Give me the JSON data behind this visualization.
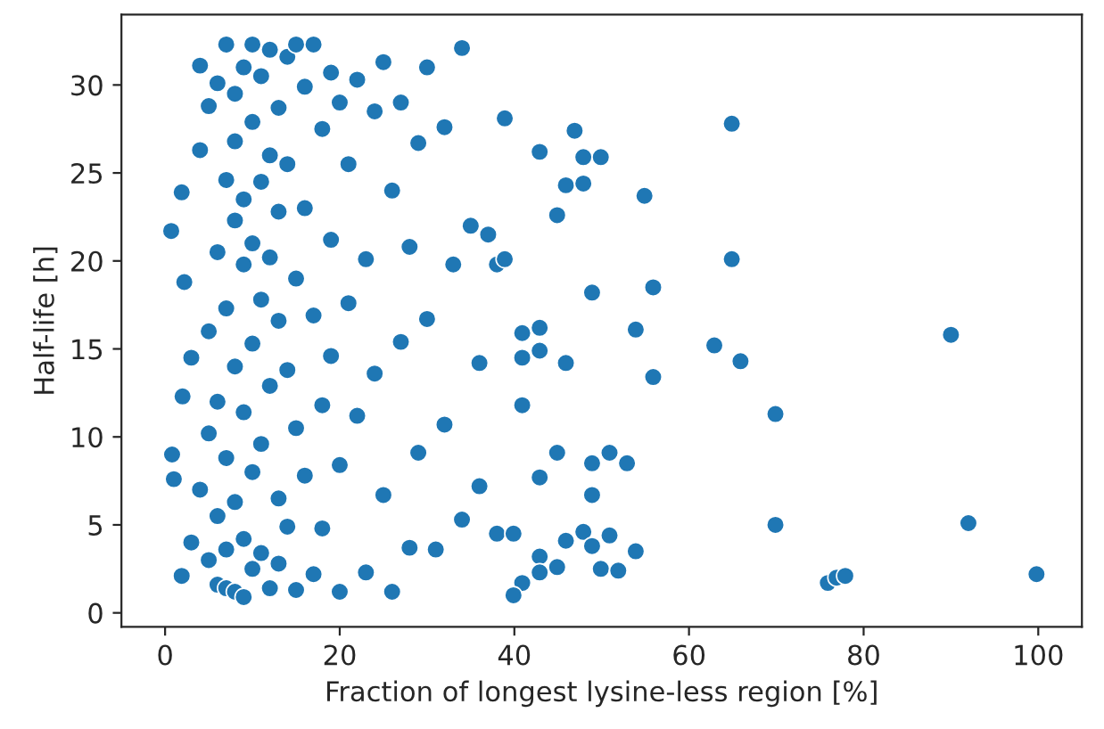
{
  "chart_data": {
    "type": "scatter",
    "xlabel": "Fraction of longest lysine-less region [%]",
    "ylabel": "Half-life [h]",
    "xlim": [
      -5,
      105
    ],
    "ylim": [
      -0.8,
      34
    ],
    "xticks": [
      0,
      20,
      40,
      60,
      80,
      100
    ],
    "yticks": [
      0,
      5,
      10,
      15,
      20,
      25,
      30
    ],
    "grid": false,
    "marker": "circle",
    "series": [
      {
        "color": "#1f77b4",
        "x": [
          0.7,
          0.8,
          1.0,
          1.9,
          1.9,
          2.0,
          2.2,
          3,
          3,
          4,
          4,
          4,
          5,
          5,
          5,
          5,
          6,
          6,
          6,
          6,
          6,
          7,
          7,
          7,
          7,
          7,
          7,
          8,
          8,
          8,
          8,
          8,
          8,
          9,
          9,
          9,
          9,
          9,
          9,
          10,
          10,
          10,
          10,
          10,
          10,
          11,
          11,
          11,
          11,
          11,
          12,
          12,
          12,
          12,
          12,
          13,
          13,
          13,
          13,
          13,
          14,
          14,
          14,
          14,
          15,
          15,
          15,
          15,
          16,
          16,
          16,
          17,
          17,
          17,
          18,
          18,
          18,
          19,
          19,
          19,
          20,
          20,
          20,
          21,
          21,
          22,
          22,
          23,
          23,
          24,
          24,
          25,
          25,
          26,
          26,
          27,
          27,
          28,
          28,
          29,
          29,
          30,
          30,
          31,
          32,
          32,
          33,
          34,
          34,
          35,
          36,
          36,
          37,
          38,
          38,
          64.9,
          64.9,
          46.9,
          42.9,
          47.9,
          49.9,
          45.9,
          47.9,
          54.9,
          44.9,
          38.9,
          38.9,
          48.9,
          55.9,
          42.9,
          40.9,
          42.9,
          40.9,
          45.9,
          53.9,
          55.9,
          62.9,
          65.9,
          90.0,
          69.9,
          40.9,
          44.9,
          50.9,
          48.9,
          52.9,
          42.9,
          48.9,
          69.9,
          92.0,
          39.9,
          47.9,
          45.9,
          50.9,
          48.9,
          53.9,
          42.9,
          44.9,
          42.9,
          49.9,
          51.9,
          40.9,
          39.9,
          75.9,
          76.9,
          77.9,
          99.8
        ],
        "values": [
          21.7,
          9.0,
          7.6,
          2.1,
          23.9,
          12.3,
          18.8,
          4.0,
          14.5,
          31.1,
          26.3,
          7.0,
          28.8,
          16.0,
          3.0,
          10.2,
          30.1,
          20.5,
          12.0,
          5.5,
          1.6,
          32.3,
          24.6,
          17.3,
          8.8,
          3.6,
          1.4,
          29.5,
          22.3,
          14.0,
          6.3,
          1.2,
          26.8,
          31.0,
          19.8,
          11.4,
          4.2,
          23.5,
          0.9,
          32.3,
          27.9,
          21.0,
          15.3,
          8.0,
          2.5,
          30.5,
          24.5,
          17.8,
          9.6,
          3.4,
          32.0,
          26.0,
          20.2,
          12.9,
          1.4,
          28.7,
          22.8,
          16.6,
          6.5,
          2.8,
          31.6,
          25.5,
          13.8,
          4.9,
          32.3,
          19.0,
          10.5,
          1.3,
          29.9,
          23.0,
          7.8,
          32.3,
          16.9,
          2.2,
          27.5,
          11.8,
          4.8,
          30.7,
          21.2,
          14.6,
          29.0,
          8.4,
          1.2,
          25.5,
          17.6,
          30.3,
          11.2,
          20.1,
          2.3,
          28.5,
          13.6,
          31.3,
          6.7,
          24.0,
          1.2,
          29.0,
          15.4,
          20.8,
          3.7,
          26.7,
          9.1,
          31.0,
          16.7,
          3.6,
          27.6,
          10.7,
          19.8,
          32.1,
          5.3,
          22.0,
          14.2,
          7.2,
          21.5,
          19.8,
          4.5,
          27.8,
          20.1,
          27.4,
          26.2,
          25.9,
          25.9,
          24.3,
          24.4,
          23.7,
          22.6,
          28.1,
          20.1,
          18.2,
          18.5,
          16.2,
          15.9,
          14.9,
          14.5,
          14.2,
          16.1,
          13.4,
          15.2,
          14.3,
          15.8,
          11.3,
          11.8,
          9.1,
          9.1,
          8.5,
          8.5,
          7.7,
          6.7,
          5.0,
          5.1,
          4.5,
          4.6,
          4.1,
          4.4,
          3.8,
          3.5,
          3.2,
          2.6,
          2.3,
          2.5,
          2.4,
          1.7,
          1.0,
          1.7,
          2.0,
          2.1,
          2.2
        ]
      }
    ]
  }
}
